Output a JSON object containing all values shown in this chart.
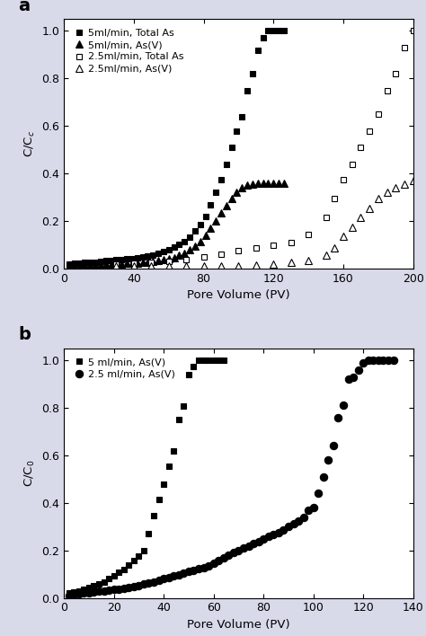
{
  "panel_a": {
    "title": "a",
    "xlabel": "Pore Volume (PV)",
    "ylabel": "C/C$_c$",
    "xlim": [
      0,
      200
    ],
    "ylim": [
      0,
      1.05
    ],
    "xticks": [
      0,
      40,
      80,
      120,
      160,
      200
    ],
    "yticks": [
      0.0,
      0.2,
      0.4,
      0.6,
      0.8,
      1.0
    ],
    "series": [
      {
        "label": "5ml/min, Total As",
        "marker": "s",
        "filled": true,
        "color": "#000000",
        "x": [
          3,
          6,
          9,
          12,
          15,
          18,
          21,
          24,
          27,
          30,
          33,
          36,
          39,
          42,
          45,
          48,
          51,
          54,
          57,
          60,
          63,
          66,
          69,
          72,
          75,
          78,
          81,
          84,
          87,
          90,
          93,
          96,
          99,
          102,
          105,
          108,
          111,
          114,
          117,
          120,
          123,
          126
        ],
        "y": [
          0.02,
          0.022,
          0.024,
          0.025,
          0.026,
          0.028,
          0.03,
          0.032,
          0.034,
          0.036,
          0.038,
          0.04,
          0.043,
          0.046,
          0.049,
          0.053,
          0.058,
          0.064,
          0.071,
          0.079,
          0.089,
          0.1,
          0.115,
          0.133,
          0.157,
          0.185,
          0.22,
          0.268,
          0.32,
          0.375,
          0.44,
          0.51,
          0.58,
          0.64,
          0.75,
          0.82,
          0.92,
          0.97,
          1.0,
          1.0,
          1.0,
          1.0
        ]
      },
      {
        "label": "5ml/min, As(V)",
        "marker": "^",
        "filled": true,
        "color": "#000000",
        "x": [
          3,
          6,
          9,
          12,
          15,
          18,
          21,
          24,
          27,
          30,
          33,
          36,
          39,
          42,
          45,
          48,
          51,
          54,
          57,
          60,
          63,
          66,
          69,
          72,
          75,
          78,
          81,
          84,
          87,
          90,
          93,
          96,
          99,
          102,
          105,
          108,
          111,
          114,
          117,
          120,
          123,
          126
        ],
        "y": [
          0.01,
          0.012,
          0.013,
          0.014,
          0.015,
          0.015,
          0.016,
          0.017,
          0.018,
          0.019,
          0.02,
          0.021,
          0.022,
          0.023,
          0.025,
          0.027,
          0.029,
          0.032,
          0.036,
          0.041,
          0.047,
          0.055,
          0.065,
          0.078,
          0.095,
          0.115,
          0.14,
          0.17,
          0.2,
          0.235,
          0.265,
          0.295,
          0.32,
          0.34,
          0.35,
          0.355,
          0.36,
          0.36,
          0.36,
          0.36,
          0.36,
          0.36
        ]
      },
      {
        "label": "2.5ml/min, Total As",
        "marker": "s",
        "filled": false,
        "color": "#000000",
        "x": [
          30,
          40,
          50,
          60,
          70,
          80,
          90,
          100,
          110,
          120,
          130,
          140,
          150,
          155,
          160,
          165,
          170,
          175,
          180,
          185,
          190,
          195,
          200
        ],
        "y": [
          0.02,
          0.022,
          0.025,
          0.03,
          0.038,
          0.048,
          0.06,
          0.075,
          0.087,
          0.097,
          0.11,
          0.145,
          0.215,
          0.295,
          0.375,
          0.44,
          0.51,
          0.58,
          0.65,
          0.75,
          0.82,
          0.93,
          1.0
        ]
      },
      {
        "label": "2.5ml/min, As(V)",
        "marker": "^",
        "filled": false,
        "color": "#000000",
        "x": [
          30,
          40,
          50,
          60,
          70,
          80,
          90,
          100,
          110,
          120,
          130,
          140,
          150,
          155,
          160,
          165,
          170,
          175,
          180,
          185,
          190,
          195,
          200
        ],
        "y": [
          0.01,
          0.01,
          0.01,
          0.01,
          0.01,
          0.01,
          0.01,
          0.012,
          0.015,
          0.018,
          0.025,
          0.035,
          0.055,
          0.085,
          0.135,
          0.175,
          0.215,
          0.255,
          0.295,
          0.32,
          0.34,
          0.355,
          0.37
        ]
      }
    ]
  },
  "panel_b": {
    "title": "b",
    "xlabel": "Pore Volume (PV)",
    "ylabel": "C/C$_0$",
    "xlim": [
      0,
      140
    ],
    "ylim": [
      0,
      1.05
    ],
    "xticks": [
      0,
      20,
      40,
      60,
      80,
      100,
      120,
      140
    ],
    "yticks": [
      0.0,
      0.2,
      0.4,
      0.6,
      0.8,
      1.0
    ],
    "series": [
      {
        "label": "5 ml/min, As(V)",
        "marker": "s",
        "filled": true,
        "color": "#000000",
        "x": [
          2,
          4,
          6,
          8,
          10,
          12,
          14,
          16,
          18,
          20,
          22,
          24,
          26,
          28,
          30,
          32,
          34,
          36,
          38,
          40,
          42,
          44,
          46,
          48,
          50,
          52,
          54,
          56,
          58,
          60,
          62,
          64
        ],
        "y": [
          0.02,
          0.025,
          0.03,
          0.037,
          0.043,
          0.05,
          0.058,
          0.068,
          0.08,
          0.093,
          0.108,
          0.12,
          0.138,
          0.157,
          0.175,
          0.2,
          0.27,
          0.345,
          0.415,
          0.48,
          0.555,
          0.62,
          0.75,
          0.808,
          0.94,
          0.972,
          1.0,
          1.0,
          1.0,
          1.0,
          1.0,
          1.0
        ]
      },
      {
        "label": "2.5 ml/min, As(V)",
        "marker": "o",
        "filled": true,
        "color": "#000000",
        "x": [
          2,
          4,
          6,
          8,
          10,
          12,
          14,
          16,
          18,
          20,
          22,
          24,
          26,
          28,
          30,
          32,
          34,
          36,
          38,
          40,
          42,
          44,
          46,
          48,
          50,
          52,
          54,
          56,
          58,
          60,
          62,
          64,
          66,
          68,
          70,
          72,
          74,
          76,
          78,
          80,
          82,
          84,
          86,
          88,
          90,
          92,
          94,
          96,
          98,
          100,
          102,
          104,
          106,
          108,
          110,
          112,
          114,
          116,
          118,
          120,
          122,
          124,
          126,
          128,
          130,
          132
        ],
        "y": [
          0.01,
          0.015,
          0.018,
          0.02,
          0.022,
          0.025,
          0.027,
          0.03,
          0.032,
          0.035,
          0.037,
          0.04,
          0.043,
          0.047,
          0.052,
          0.057,
          0.062,
          0.068,
          0.074,
          0.08,
          0.086,
          0.092,
          0.098,
          0.104,
          0.11,
          0.116,
          0.122,
          0.128,
          0.136,
          0.146,
          0.156,
          0.167,
          0.178,
          0.19,
          0.2,
          0.21,
          0.218,
          0.228,
          0.238,
          0.248,
          0.258,
          0.265,
          0.275,
          0.285,
          0.3,
          0.312,
          0.325,
          0.34,
          0.37,
          0.38,
          0.44,
          0.51,
          0.58,
          0.64,
          0.76,
          0.81,
          0.92,
          0.93,
          0.96,
          0.99,
          1.0,
          1.0,
          1.0,
          1.0,
          1.0,
          1.0
        ]
      }
    ]
  },
  "fig_bg": "#d8daea",
  "plot_bg": "#ffffff",
  "marker_size_sq": 5,
  "marker_size_tri": 6,
  "marker_size_circ": 6,
  "line_width": 0.0
}
